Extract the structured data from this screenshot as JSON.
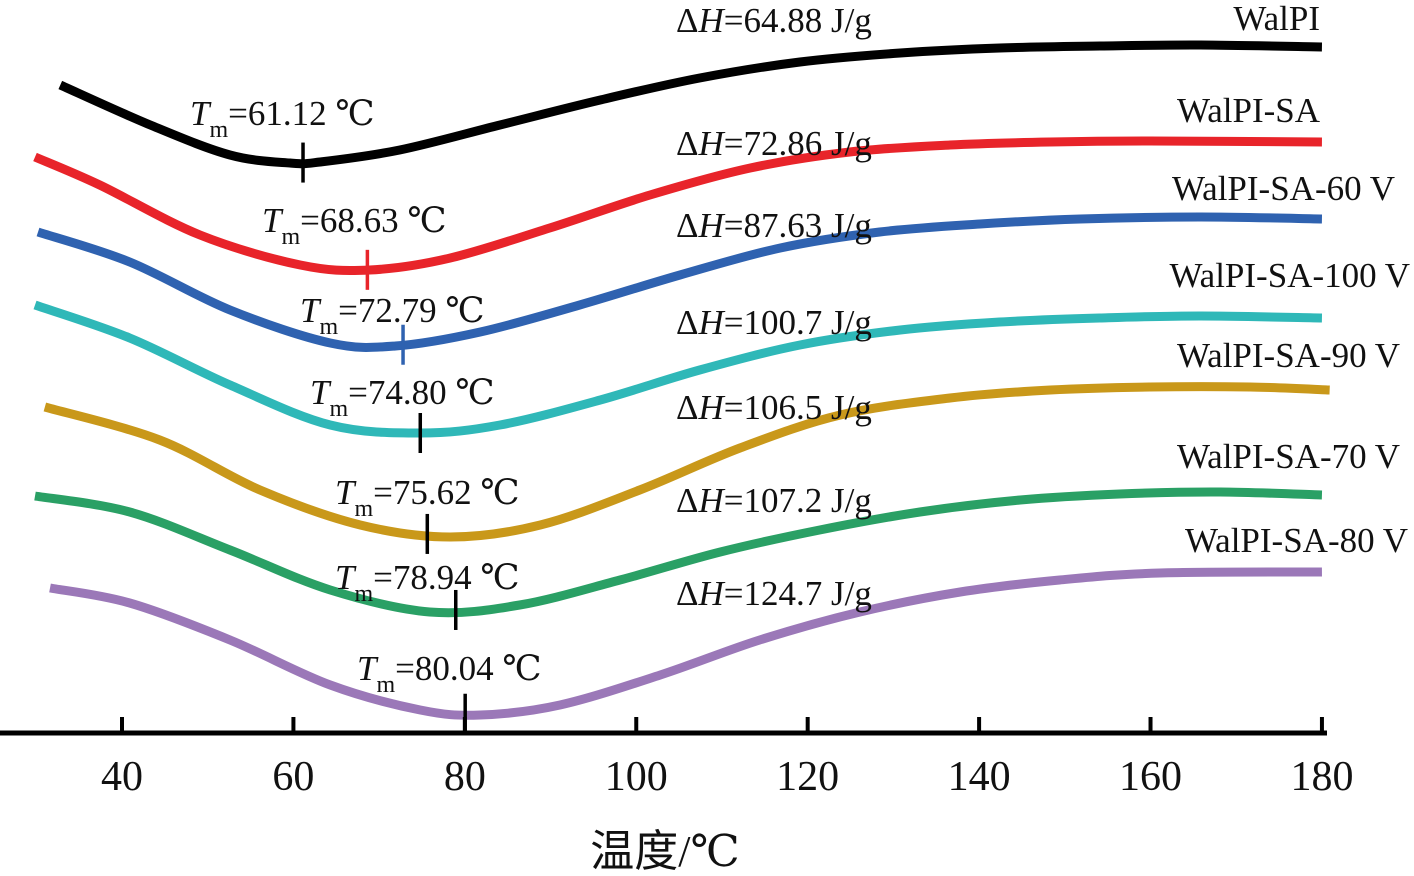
{
  "chart_data": {
    "type": "line",
    "title": "",
    "xlabel": "温度/℃",
    "ylabel": "",
    "xlim": [
      25.8,
      180
    ],
    "xticks": [
      "40",
      "60",
      "80",
      "100",
      "120",
      "140",
      "160",
      "180"
    ],
    "y_axis_shown": false,
    "grid": false,
    "legend": "labels at right end of each curve",
    "series": [
      {
        "name": "WalPI",
        "color": "#000000",
        "marker_color": "#000000",
        "tm_prefix": "T",
        "tm_sub": "m",
        "tm_text": "=61.12 ℃",
        "tm": 61.12,
        "dh_delta": "Δ",
        "dh_H": "H",
        "dh_text": "=64.88 J/g",
        "x": [
          32.8,
          43.3,
          52.6,
          59.6,
          63.1,
          72.4,
          84.1,
          95.8,
          107.4,
          119.1,
          130.8,
          142.4,
          154.1,
          165.8,
          180
        ],
        "y": [
          6.48,
          6.08,
          5.78,
          5.7,
          5.71,
          5.83,
          6.08,
          6.33,
          6.55,
          6.71,
          6.8,
          6.85,
          6.87,
          6.88,
          6.86
        ]
      },
      {
        "name": "WalPI-SA",
        "color": "#e8242a",
        "marker_color": "#e8242a",
        "tm_prefix": "T",
        "tm_sub": "m",
        "tm_text": "=68.63 ℃",
        "tm": 68.63,
        "dh_delta": "Δ",
        "dh_H": "H",
        "dh_text": "=72.86 J/g",
        "x": [
          29.85,
          37.4,
          49.1,
          60.8,
          68.9,
          78.3,
          89.9,
          101.6,
          113.3,
          124.9,
          136.6,
          148.3,
          159.9,
          180
        ],
        "y": [
          5.76,
          5.48,
          4.98,
          4.68,
          4.63,
          4.75,
          5.05,
          5.38,
          5.65,
          5.81,
          5.88,
          5.91,
          5.92,
          5.91
        ]
      },
      {
        "name": "WalPI-SA-60 V",
        "color": "#2f62b0",
        "marker_color": "#2f62b0",
        "tm_prefix": "T",
        "tm_sub": "m",
        "tm_text": "=72.79 ℃",
        "tm": 72.79,
        "dh_delta": "Δ",
        "dh_H": "H",
        "dh_text": "=87.63 J/g",
        "x": [
          30.2,
          40.9,
          52.6,
          64.3,
          71.9,
          81.8,
          93.4,
          105.1,
          116.8,
          128.4,
          140.1,
          151.8,
          165.8,
          180
        ],
        "y": [
          5.01,
          4.71,
          4.23,
          3.9,
          3.87,
          4.01,
          4.28,
          4.58,
          4.85,
          5.01,
          5.09,
          5.14,
          5.16,
          5.14
        ]
      },
      {
        "name": "WalPI-SA-100 V",
        "color": "#2fb8b8",
        "marker_color": "#000000",
        "tm_prefix": "T",
        "tm_sub": "m",
        "tm_text": "=74.80 ℃",
        "tm": 74.8,
        "dh_delta": "Δ",
        "dh_H": "H",
        "dh_text": "=100.7 J/g",
        "x": [
          29.85,
          40.9,
          52.6,
          64.3,
          74.8,
          84.1,
          95.8,
          107.4,
          119.1,
          130.8,
          142.4,
          154.1,
          165.8,
          180
        ],
        "y": [
          4.28,
          3.95,
          3.48,
          3.08,
          3.0,
          3.08,
          3.33,
          3.63,
          3.88,
          4.03,
          4.11,
          4.15,
          4.17,
          4.15
        ]
      },
      {
        "name": "WalPI-SA-90 V",
        "color": "#c9981a",
        "marker_color": "#000000",
        "tm_prefix": "T",
        "tm_sub": "m",
        "tm_text": "=75.62 ℃",
        "tm": 75.62,
        "dh_delta": "Δ",
        "dh_H": "H",
        "dh_text": "=106.5 J/g",
        "x": [
          31.0,
          44.4,
          56.1,
          67.8,
          78.3,
          88.8,
          100.4,
          112.1,
          123.8,
          136.6,
          148.3,
          159.9,
          171.6,
          180.9
        ],
        "y": [
          3.26,
          2.93,
          2.43,
          2.08,
          1.96,
          2.08,
          2.43,
          2.85,
          3.18,
          3.35,
          3.43,
          3.46,
          3.46,
          3.43
        ]
      },
      {
        "name": "WalPI-SA-70 V",
        "color": "#2aa065",
        "marker_color": "#000000",
        "tm_prefix": "T",
        "tm_sub": "m",
        "tm_text": "=78.94 ℃",
        "tm": 78.94,
        "dh_delta": "Δ",
        "dh_H": "H",
        "dh_text": "=107.2 J/g",
        "x": [
          29.85,
          40.9,
          52.6,
          64.3,
          75.9,
          86.4,
          98.1,
          109.8,
          121.4,
          133.1,
          144.8,
          156.4,
          168.1,
          180
        ],
        "y": [
          2.37,
          2.21,
          1.83,
          1.43,
          1.21,
          1.28,
          1.53,
          1.81,
          2.03,
          2.21,
          2.33,
          2.39,
          2.41,
          2.38
        ]
      },
      {
        "name": "WalPI-SA-80 V",
        "color": "#9b78b8",
        "marker_color": "#000000",
        "tm_prefix": "T",
        "tm_sub": "m",
        "tm_text": "=80.04 ℃",
        "tm": 80.04,
        "dh_delta": "Δ",
        "dh_H": "H",
        "dh_text": "=124.7 J/g",
        "x": [
          31.6,
          40.9,
          52.6,
          64.3,
          74.8,
          81.8,
          91.1,
          102.8,
          114.4,
          126.1,
          137.8,
          149.4,
          161.1,
          180
        ],
        "y": [
          1.45,
          1.3,
          0.93,
          0.48,
          0.23,
          0.18,
          0.28,
          0.58,
          0.93,
          1.21,
          1.41,
          1.53,
          1.6,
          1.61
        ]
      }
    ]
  }
}
